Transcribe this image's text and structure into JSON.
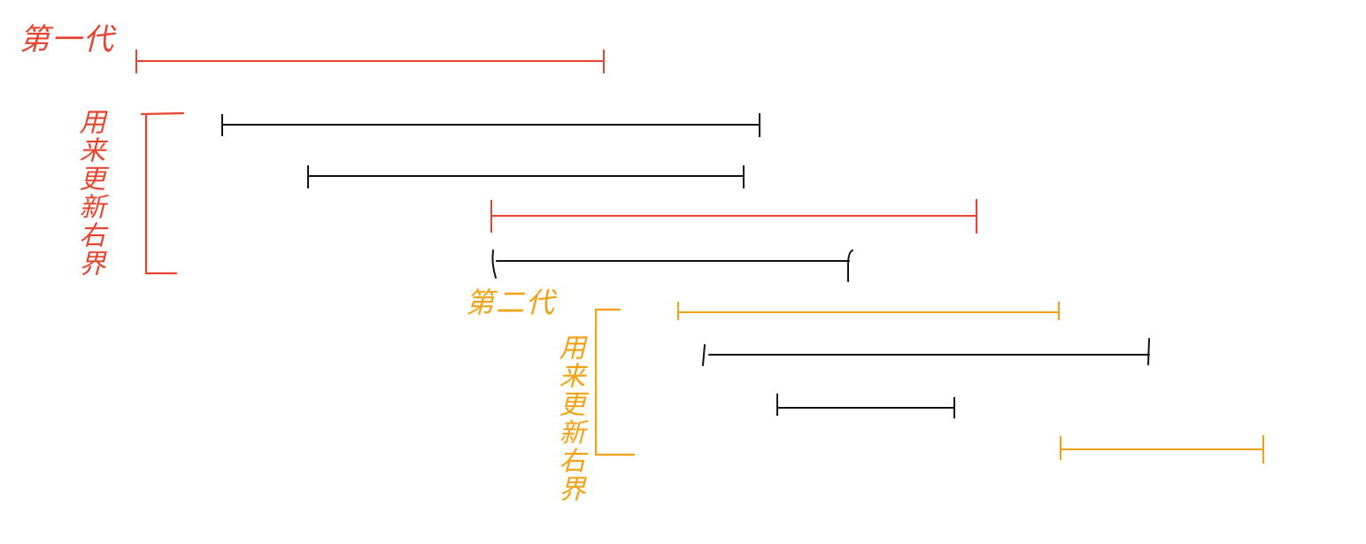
{
  "colors": {
    "generation1": "#e8432e",
    "generation2": "#f4a011",
    "interval": "#111111",
    "background": "#ffffff"
  },
  "labels": {
    "gen1_title": "第一代",
    "gen1_bracket_note": "用来更新右界",
    "gen2_title": "第二代",
    "gen2_bracket_note": "用来更新右界"
  },
  "intervals": [
    {
      "id": "gen1-main",
      "group": "generation1"
    },
    {
      "id": "black-1",
      "group": "interval"
    },
    {
      "id": "black-2",
      "group": "interval"
    },
    {
      "id": "gen1-extended",
      "group": "generation1"
    },
    {
      "id": "black-3",
      "group": "interval"
    },
    {
      "id": "gen2-main",
      "group": "generation2"
    },
    {
      "id": "black-4",
      "group": "interval"
    },
    {
      "id": "black-5",
      "group": "interval"
    },
    {
      "id": "gen2-extended",
      "group": "generation2"
    }
  ]
}
